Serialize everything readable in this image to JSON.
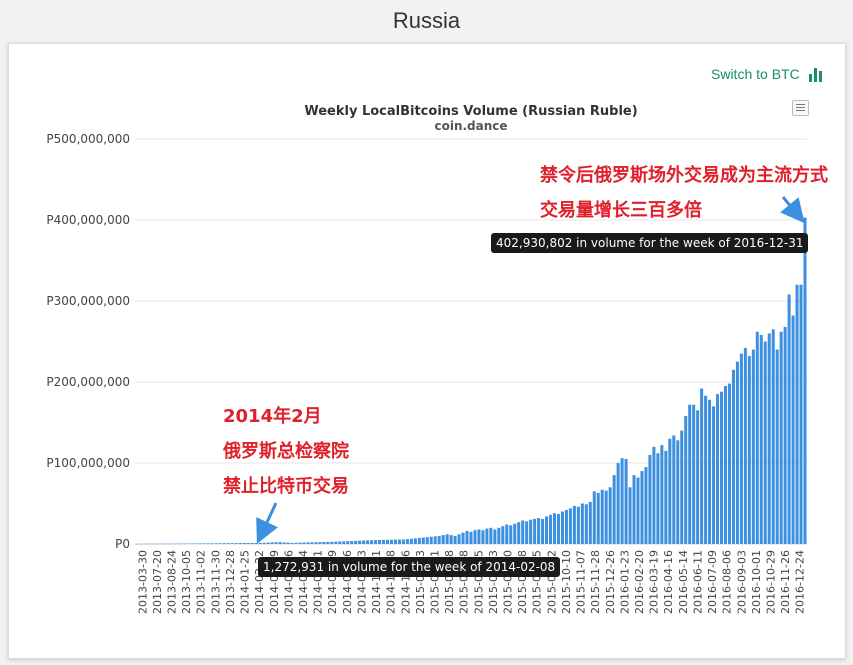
{
  "page": {
    "title": "Russia"
  },
  "switch": {
    "label": "Switch to BTC",
    "icon": "bar-chart-icon",
    "color": "#1a8f6b"
  },
  "menu": {
    "icon": "hamburger-menu-icon"
  },
  "annotations": {
    "top_line1": "禁令后俄罗斯场外交易成为主流方式",
    "top_line2": "交易量增长三百多倍",
    "left_line1": "2014年2月",
    "left_line2": "俄罗斯总检察院",
    "left_line3": "禁止比特币交易",
    "color": "#e0202a"
  },
  "tooltips": {
    "high": "402,930,802 in volume for the week of 2016-12-31",
    "low": "1,272,931 in volume for the week of 2014-02-08"
  },
  "chart_data": {
    "type": "bar",
    "title": "Weekly LocalBitcoins Volume (Russian Ruble)",
    "subtitle": "coin.dance",
    "bar_color": "#3d8fe0",
    "ylim": [
      0,
      500000000
    ],
    "yticks": [
      0,
      100000000,
      200000000,
      300000000,
      400000000,
      500000000
    ],
    "ytick_labels": [
      "P0",
      "P100,000,000",
      "P200,000,000",
      "P300,000,000",
      "P400,000,000",
      "P500,000,000"
    ],
    "xtick_labels": [
      "2013-03-30",
      "2013-07-20",
      "2013-08-24",
      "2013-10-05",
      "2013-11-02",
      "2013-11-30",
      "2013-12-28",
      "2014-01-25",
      "2014-02-22",
      "2014-03-29",
      "2014-04-26",
      "2014-05-24",
      "2014-06-21",
      "2014-07-19",
      "2014-08-16",
      "2014-09-13",
      "2014-10-11",
      "2014-11-08",
      "2014-12-06",
      "2015-01-03",
      "2015-01-31",
      "2015-02-28",
      "2015-03-28",
      "2015-04-25",
      "2015-05-23",
      "2015-06-20",
      "2015-07-18",
      "2015-08-15",
      "2015-09-12",
      "2015-10-10",
      "2015-11-07",
      "2015-11-28",
      "2015-12-26",
      "2016-01-23",
      "2016-02-20",
      "2016-03-19",
      "2016-04-16",
      "2016-05-14",
      "2016-06-11",
      "2016-07-09",
      "2016-08-06",
      "2016-09-03",
      "2016-10-01",
      "2016-10-29",
      "2016-11-26",
      "2016-12-24"
    ],
    "values": [
      200000,
      200000,
      300000,
      300000,
      300000,
      300000,
      400000,
      400000,
      400000,
      400000,
      500000,
      500000,
      600000,
      600000,
      600000,
      700000,
      700000,
      800000,
      800000,
      800000,
      900000,
      900000,
      1000000,
      1000000,
      1100000,
      1100000,
      1200000,
      1200000,
      1200000,
      1300000,
      1300000,
      1400000,
      1500000,
      1800000,
      2000000,
      2200000,
      2300000,
      1900000,
      1800000,
      1272931,
      1400000,
      1600000,
      1800000,
      2000000,
      2100000,
      2200000,
      2300000,
      2400000,
      2500000,
      2700000,
      2900000,
      3100000,
      3300000,
      3500000,
      3700000,
      3900000,
      4100000,
      4300000,
      4500000,
      4700000,
      4900000,
      5000000,
      5100000,
      5200000,
      5300000,
      5400000,
      5500000,
      5600000,
      6000000,
      6500000,
      7000000,
      7500000,
      8000000,
      8500000,
      9000000,
      9500000,
      10000000,
      11000000,
      12000000,
      11000000,
      10000000,
      12000000,
      14000000,
      16000000,
      15000000,
      17000000,
      18000000,
      17000000,
      19000000,
      20000000,
      18000000,
      20000000,
      22000000,
      24000000,
      23000000,
      25000000,
      27000000,
      29000000,
      28000000,
      30000000,
      31000000,
      32000000,
      31000000,
      34000000,
      36000000,
      38000000,
      37000000,
      40000000,
      42000000,
      44000000,
      47000000,
      46000000,
      50000000,
      49000000,
      52000000,
      65000000,
      63000000,
      67000000,
      66000000,
      70000000,
      85000000,
      100000000,
      106000000,
      105000000,
      70000000,
      85000000,
      82000000,
      90000000,
      95000000,
      110000000,
      120000000,
      112000000,
      122000000,
      115000000,
      130000000,
      134000000,
      128000000,
      140000000,
      158000000,
      172000000,
      172000000,
      165000000,
      192000000,
      183000000,
      178000000,
      170000000,
      185000000,
      188000000,
      195000000,
      198000000,
      215000000,
      225000000,
      235000000,
      242000000,
      232000000,
      240000000,
      262000000,
      258000000,
      250000000,
      260000000,
      265000000,
      240000000,
      262000000,
      268000000,
      308000000,
      282000000,
      320000000,
      320000000,
      402930802
    ]
  }
}
